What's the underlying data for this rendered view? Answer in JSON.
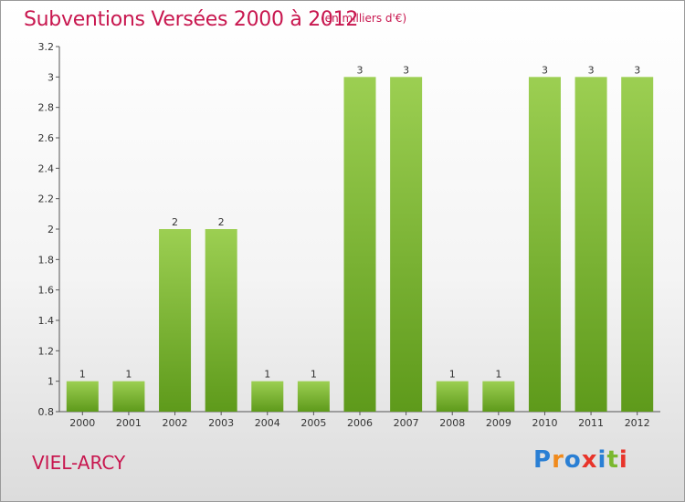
{
  "header": {
    "title": "Subventions Versées 2000 à 2012",
    "unit": "(en milliers d'€)"
  },
  "footer": {
    "commune": "VIEL-ARCY",
    "brand": [
      "P",
      "r",
      "o",
      "x",
      "i",
      "t",
      "i"
    ],
    "brand_colors": [
      "#2a7fd4",
      "#f08a1c",
      "#2a7fd4",
      "#e8342a",
      "#2a7fd4",
      "#7ab82e",
      "#e8342a"
    ]
  },
  "chart_data": {
    "type": "bar",
    "categories": [
      "2000",
      "2001",
      "2002",
      "2003",
      "2004",
      "2005",
      "2006",
      "2007",
      "2008",
      "2009",
      "2010",
      "2011",
      "2012"
    ],
    "values": [
      1,
      1,
      2,
      2,
      1,
      1,
      3,
      3,
      1,
      1,
      3,
      3,
      3
    ],
    "data_labels": [
      "1",
      "1",
      "2",
      "2",
      "1",
      "1",
      "3",
      "3",
      "1",
      "1",
      "3",
      "3",
      "3"
    ],
    "ylim": [
      0.8,
      3.2
    ],
    "yticks": [
      "0.8",
      "1",
      "1.2",
      "1.4",
      "1.6",
      "1.8",
      "2",
      "2.2",
      "2.4",
      "2.6",
      "2.8",
      "3",
      "3.2"
    ],
    "grid": false,
    "bar_color_top": "#9ccf52",
    "bar_color_bottom": "#5e9a1b"
  }
}
